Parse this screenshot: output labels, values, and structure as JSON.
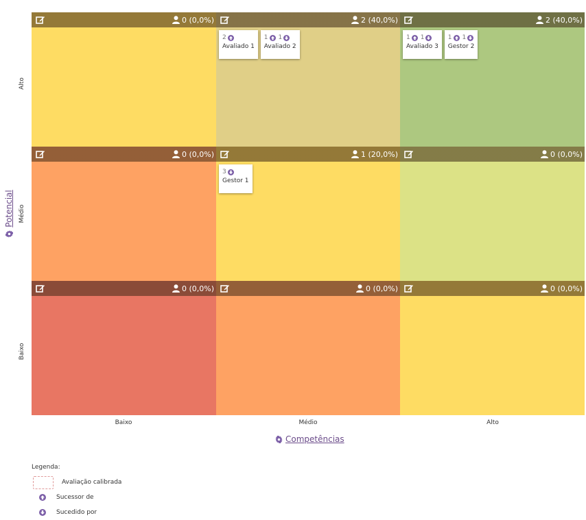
{
  "colors": {
    "accent": "#7b5ea7",
    "cell_red": "#e87663",
    "cell_orange": "#fea263",
    "cell_yellow": "#fedc63",
    "cell_tan": "#e0cf87",
    "cell_green": "#adc880",
    "cell_lightgreen": "#dce286"
  },
  "axes": {
    "y_title": "Potencial",
    "x_title": "Competências",
    "y_levels": [
      "Alto",
      "Médio",
      "Baixo"
    ],
    "x_levels": [
      "Baixo",
      "Médio",
      "Alto"
    ]
  },
  "cells": [
    {
      "row": "Alto",
      "col": "Baixo",
      "count": "0 (0,0%)",
      "cards": []
    },
    {
      "row": "Alto",
      "col": "Médio",
      "count": "2 (40,0%)",
      "cards": [
        {
          "name": "Avaliado 1",
          "badges": [
            {
              "n": "2",
              "icon": "arrow-up-circle-icon"
            }
          ]
        },
        {
          "name": "Avaliado 2",
          "badges": [
            {
              "n": "1",
              "icon": "arrow-up-circle-icon"
            },
            {
              "n": "1",
              "icon": "arrow-down-circle-icon"
            }
          ]
        }
      ]
    },
    {
      "row": "Alto",
      "col": "Alto",
      "count": "2 (40,0%)",
      "cards": [
        {
          "name": "Avaliado 3",
          "badges": [
            {
              "n": "1",
              "icon": "arrow-up-circle-icon"
            },
            {
              "n": "1",
              "icon": "arrow-down-circle-icon"
            }
          ]
        },
        {
          "name": "Gestor 2",
          "badges": [
            {
              "n": "1",
              "icon": "arrow-up-circle-icon"
            },
            {
              "n": "1",
              "icon": "arrow-down-circle-icon"
            }
          ]
        }
      ]
    },
    {
      "row": "Médio",
      "col": "Baixo",
      "count": "0 (0,0%)",
      "cards": []
    },
    {
      "row": "Médio",
      "col": "Médio",
      "count": "1 (20,0%)",
      "cards": [
        {
          "name": "Gestor 1",
          "badges": [
            {
              "n": "3",
              "icon": "arrow-down-circle-icon"
            }
          ]
        }
      ]
    },
    {
      "row": "Médio",
      "col": "Alto",
      "count": "0 (0,0%)",
      "cards": []
    },
    {
      "row": "Baixo",
      "col": "Baixo",
      "count": "0 (0,0%)",
      "cards": []
    },
    {
      "row": "Baixo",
      "col": "Médio",
      "count": "0 (0,0%)",
      "cards": []
    },
    {
      "row": "Baixo",
      "col": "Alto",
      "count": "0 (0,0%)",
      "cards": []
    }
  ],
  "legend": {
    "title": "Legenda:",
    "calibrated": "Avaliação calibrada",
    "successor_of": "Sucessor de",
    "succeeded_by": "Sucedido por"
  }
}
